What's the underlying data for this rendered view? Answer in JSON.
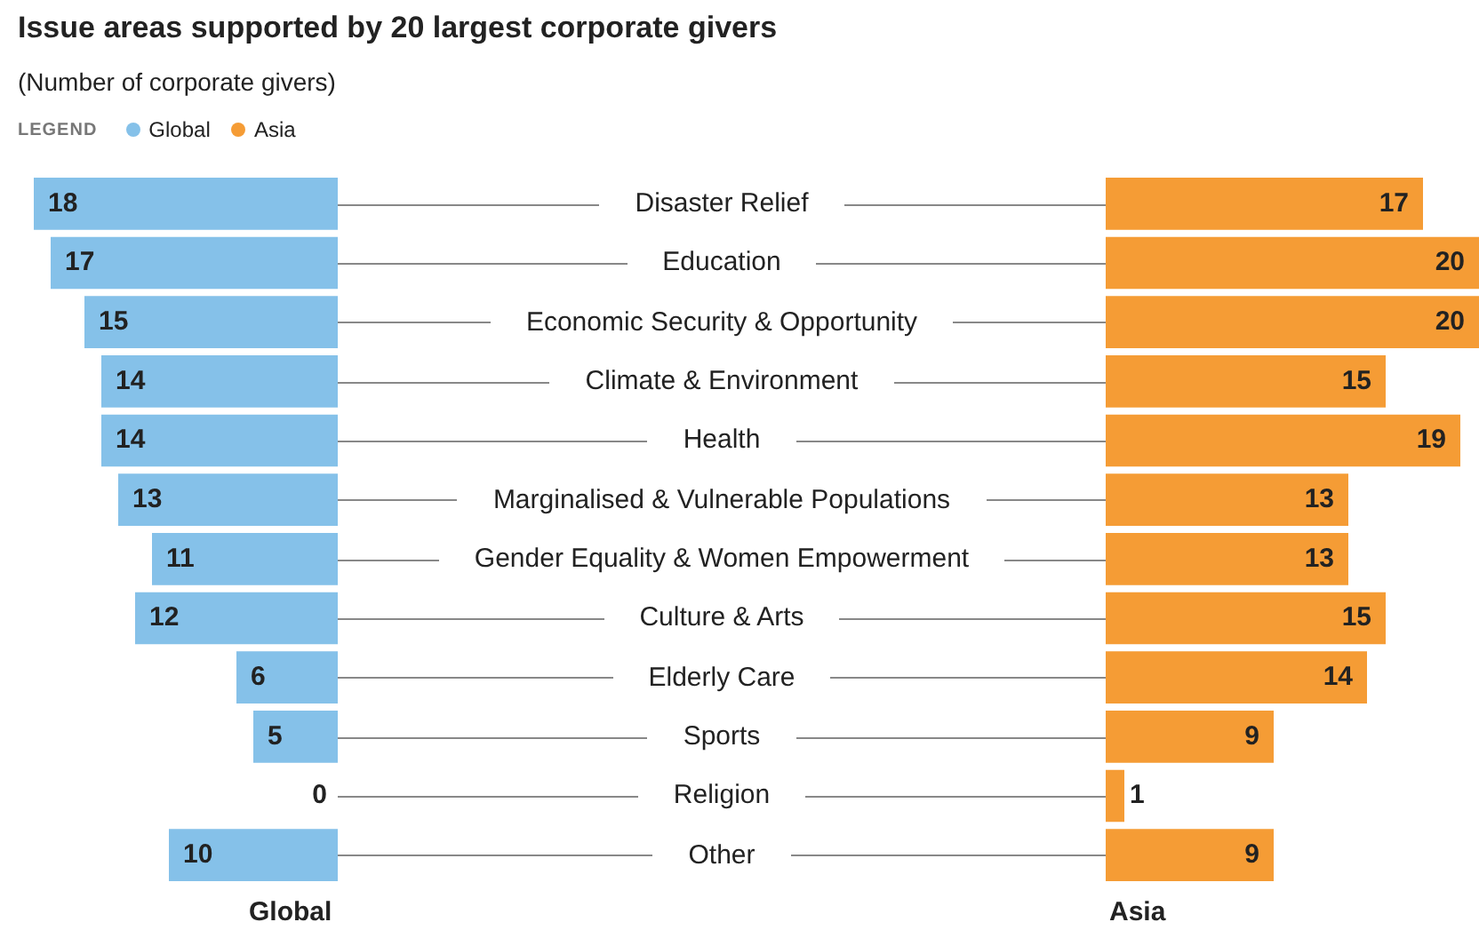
{
  "chart_data": [
    {
      "type": "bar",
      "title": "Issue areas supported by 20 largest corporate givers",
      "subtitle": "(Number of corporate givers)",
      "legend_title": "LEGEND",
      "legend": "top left",
      "orientation": "horizontal",
      "data_labels": true,
      "xlabel": "Global",
      "categories": [
        "Disaster Relief",
        "Education",
        "Economic Security & Opportunity",
        "Climate & Environment",
        "Health",
        "Marginalised & Vulnerable Populations",
        "Gender Equality & Women Empowerment",
        "Culture & Arts",
        "Elderly Care",
        "Sports",
        "Religion",
        "Other"
      ],
      "series": [
        {
          "name": "Global",
          "color": "#85c1e9",
          "values": [
            18,
            17,
            15,
            14,
            14,
            13,
            11,
            12,
            6,
            5,
            0,
            10
          ]
        }
      ]
    },
    {
      "type": "bar",
      "legend": "top left",
      "orientation": "horizontal",
      "data_labels": true,
      "xlabel": "Asia",
      "categories": [
        null,
        null,
        null,
        null,
        null,
        null,
        null,
        null,
        null,
        null,
        null,
        null
      ],
      "series": [
        {
          "name": "Asia",
          "color": "#f59c35",
          "values": [
            17,
            20,
            20,
            15,
            19,
            13,
            13,
            15,
            14,
            9,
            1,
            9
          ]
        }
      ]
    }
  ]
}
